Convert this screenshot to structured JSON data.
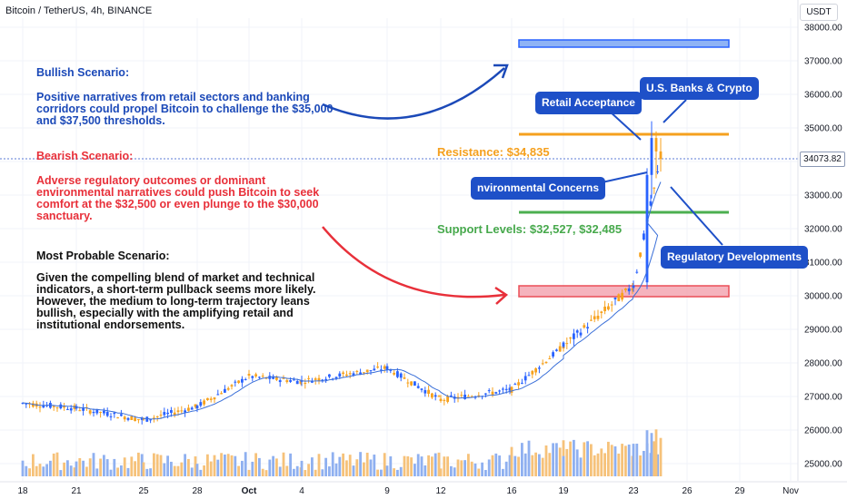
{
  "header": {
    "title": "Bitcoin / TetherUS, 4h, BINANCE",
    "currency": "USDT"
  },
  "last_price": "34073.82",
  "annotations": {
    "bullish_title": "Bullish Scenario:",
    "bullish_lines": [
      "Positive narratives from retail sectors and banking",
      "corridors could propel Bitcoin to challenge the $35,000",
      "and $37,500 thresholds."
    ],
    "bearish_title": "Bearish Scenario:",
    "bearish_lines": [
      "Adverse regulatory outcomes or dominant",
      "environmental narratives could push Bitcoin to seek",
      "comfort at the $32,500 or even plunge to the $30,000",
      "sanctuary."
    ],
    "probable_title": "Most Probable Scenario:",
    "probable_lines": [
      "Given the compelling blend of market and technical",
      "indicators, a short-term pullback seems more likely.",
      "However, the medium to long-term trajectory leans",
      "bullish, especially with the amplifying retail and",
      "institutional endorsements."
    ],
    "resistance_label": "Resistance: $34,835",
    "support_label": "Support Levels: $32,527, $32,485",
    "callouts": {
      "retail": "Retail Acceptance",
      "banks": "U.S. Banks & Crypto",
      "environmental": "nvironmental Concerns",
      "regulatory": "Regulatory Developments"
    }
  },
  "chart_data": {
    "type": "candlestick",
    "symbol": "BTC/USDT",
    "interval": "4h",
    "y_axis": {
      "ticks": [
        25000,
        26000,
        27000,
        28000,
        29000,
        30000,
        31000,
        32000,
        33000,
        34000,
        35000,
        36000,
        37000,
        38000
      ],
      "range": [
        24900,
        38300
      ]
    },
    "x_axis": {
      "tick_labels": [
        "18",
        "21",
        "25",
        "28",
        "Oct",
        "4",
        "9",
        "12",
        "16",
        "19",
        "23",
        "26",
        "29",
        "Nov"
      ]
    },
    "levels": {
      "resistance": 34835,
      "support": [
        32527,
        32485
      ],
      "target_zone": [
        37500,
        37700
      ],
      "demand_zone": [
        30000,
        30300
      ]
    },
    "close_path": [
      {
        "x": "18",
        "y": 26800
      },
      {
        "x": "21",
        "y": 26650
      },
      {
        "x": "25",
        "y": 26300
      },
      {
        "x": "28",
        "y": 26700
      },
      {
        "x": "Oct",
        "y": 27600
      },
      {
        "x": "4",
        "y": 27450
      },
      {
        "x": "9",
        "y": 27850
      },
      {
        "x": "12",
        "y": 26900
      },
      {
        "x": "16",
        "y": 27200
      },
      {
        "x": "19",
        "y": 28500
      },
      {
        "x": "23",
        "y": 30300
      },
      {
        "x": "24",
        "y": 34073.82
      }
    ]
  },
  "colors": {
    "up": "#2962ff",
    "down": "#f7a21e",
    "resistance": "#f5a01e",
    "support": "#4caf50",
    "demand": "#f28b9a",
    "target": "#8fb3f5",
    "bull": "#1b49b8",
    "bear": "#e8303a"
  }
}
